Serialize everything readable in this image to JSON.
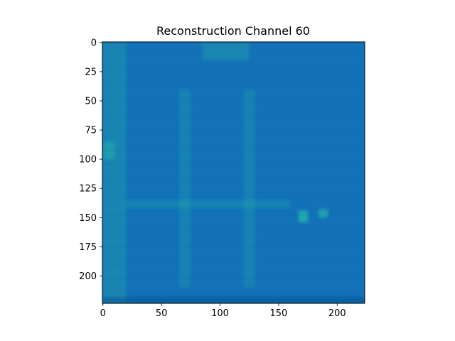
{
  "chart_data": {
    "type": "heatmap",
    "title": "Reconstruction Channel 60",
    "xlabel": "",
    "ylabel": "",
    "image_size": [
      224,
      224
    ],
    "xlim": [
      -0.5,
      223.5
    ],
    "ylim": [
      223.5,
      -0.5
    ],
    "x_ticks": [
      0,
      50,
      100,
      150,
      200
    ],
    "y_ticks": [
      0,
      25,
      50,
      75,
      100,
      125,
      150,
      175,
      200
    ],
    "colormap": "blue-green (terrain-like)",
    "colors": {
      "base": "#1372b8",
      "highlight": "#2fd3a0",
      "dark_edge": "#0b4f8f",
      "frame": "#000000"
    },
    "grid": false,
    "legend": "none",
    "features": [
      {
        "name": "left-vertical-band",
        "x": [
          0,
          20
        ],
        "y": [
          0,
          224
        ],
        "intensity": 0.35
      },
      {
        "name": "left-bright-patch",
        "x": [
          0,
          10
        ],
        "y": [
          85,
          100
        ],
        "intensity": 0.55
      },
      {
        "name": "figure-left-edge",
        "x": [
          65,
          75
        ],
        "y": [
          40,
          210
        ],
        "intensity": 0.3
      },
      {
        "name": "figure-right-edge",
        "x": [
          120,
          130
        ],
        "y": [
          40,
          210
        ],
        "intensity": 0.3
      },
      {
        "name": "figure-top",
        "x": [
          85,
          125
        ],
        "y": [
          0,
          15
        ],
        "intensity": 0.4
      },
      {
        "name": "bright-spot-1",
        "x": [
          167,
          175
        ],
        "y": [
          144,
          154
        ],
        "intensity": 1.0
      },
      {
        "name": "bright-spot-2",
        "x": [
          184,
          192
        ],
        "y": [
          143,
          150
        ],
        "intensity": 0.9
      },
      {
        "name": "horizontal-band",
        "x": [
          20,
          160
        ],
        "y": [
          135,
          142
        ],
        "intensity": 0.3
      },
      {
        "name": "bottom-edge",
        "x": [
          0,
          224
        ],
        "y": [
          218,
          224
        ],
        "intensity": 0.6
      }
    ]
  }
}
